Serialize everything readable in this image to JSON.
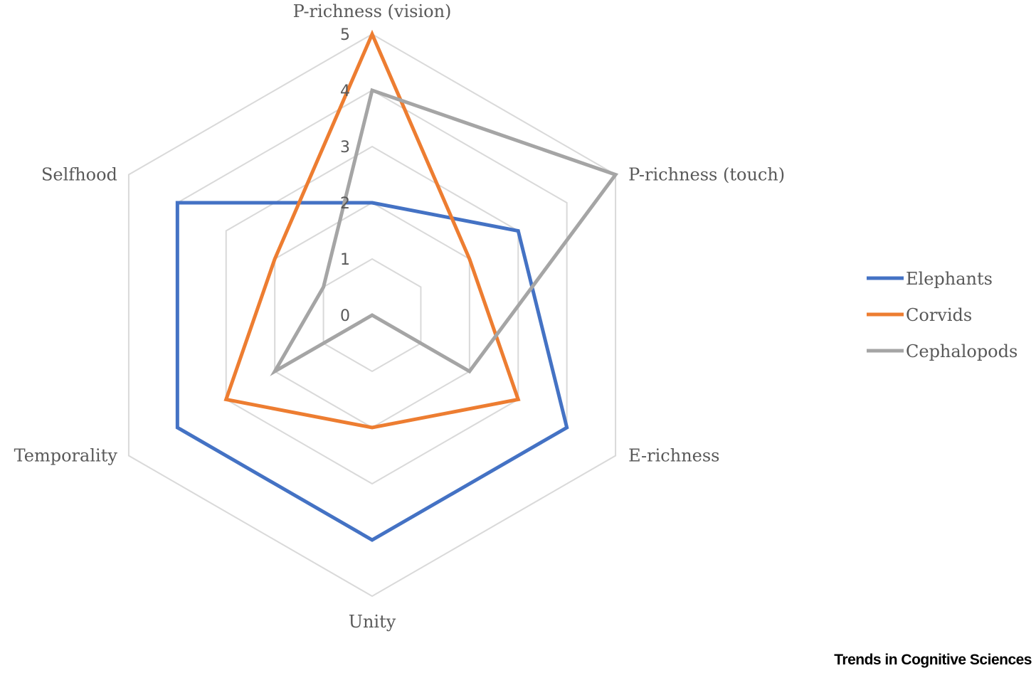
{
  "chart_data": {
    "type": "radar",
    "axes": [
      "P-richness (vision)",
      "P-richness (touch)",
      "E-richness",
      "Unity",
      "Temporality",
      "Selfhood"
    ],
    "ticks": [
      "0",
      "1",
      "2",
      "3",
      "4",
      "5"
    ],
    "rlim": [
      0,
      5
    ],
    "grid": true,
    "legend_position": "right",
    "series": [
      {
        "name": "Elephants",
        "color": "#4472C4",
        "values": [
          2,
          3,
          4,
          4,
          4,
          4
        ]
      },
      {
        "name": "Corvids",
        "color": "#ED7D31",
        "values": [
          5,
          2,
          3,
          2,
          3,
          2
        ]
      },
      {
        "name": "Cephalopods",
        "color": "#A5A5A5",
        "values": [
          4,
          5,
          2,
          0,
          2,
          1
        ]
      }
    ]
  },
  "credit": "Trends in Cognitive Sciences"
}
